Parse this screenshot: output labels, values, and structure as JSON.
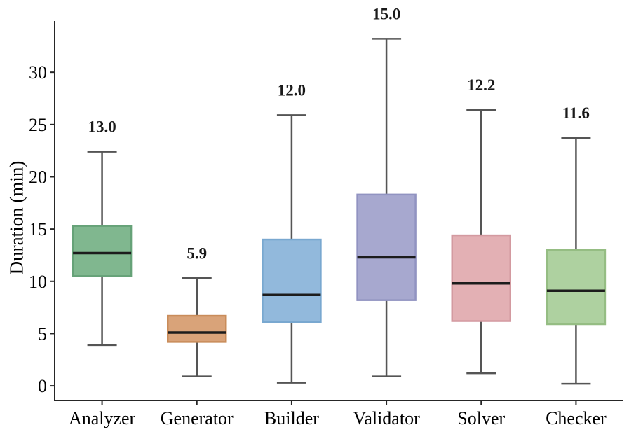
{
  "chart_data": {
    "type": "boxplot",
    "title": "",
    "xlabel": "",
    "ylabel": "Duration (min)",
    "categories": [
      "Analyzer",
      "Generator",
      "Builder",
      "Validator",
      "Solver",
      "Checker"
    ],
    "yticks": [
      0,
      5,
      10,
      15,
      20,
      25,
      30
    ],
    "ylim": [
      -1.4,
      34.9
    ],
    "grid": false,
    "legend": "none",
    "series": [
      {
        "category": "Analyzer",
        "whisker_low": 3.9,
        "q1": 10.5,
        "median": 12.7,
        "q3": 15.3,
        "whisker_high": 22.4,
        "mean_label": "13.0",
        "fill": "#80b78f",
        "edge": "#66a278"
      },
      {
        "category": "Generator",
        "whisker_low": 0.9,
        "q1": 4.2,
        "median": 5.1,
        "q3": 6.7,
        "whisker_high": 10.3,
        "mean_label": "5.9",
        "fill": "#d9a379",
        "edge": "#c98c5a"
      },
      {
        "category": "Builder",
        "whisker_low": 0.3,
        "q1": 6.1,
        "median": 8.7,
        "q3": 14.0,
        "whisker_high": 25.9,
        "mean_label": "12.0",
        "fill": "#92b9dc",
        "edge": "#79a8d0"
      },
      {
        "category": "Validator",
        "whisker_low": 0.9,
        "q1": 8.2,
        "median": 12.3,
        "q3": 18.3,
        "whisker_high": 33.2,
        "mean_label": "15.0",
        "fill": "#a7a8cf",
        "edge": "#9193c1"
      },
      {
        "category": "Solver",
        "whisker_low": 1.2,
        "q1": 6.2,
        "median": 9.8,
        "q3": 14.4,
        "whisker_high": 26.4,
        "mean_label": "12.2",
        "fill": "#e3b0b4",
        "edge": "#d39aa0"
      },
      {
        "category": "Checker",
        "whisker_low": 0.2,
        "q1": 5.9,
        "median": 9.1,
        "q3": 13.0,
        "whisker_high": 23.7,
        "mean_label": "11.6",
        "fill": "#aed1a0",
        "edge": "#95bd83"
      }
    ],
    "colors": {
      "whisker": "#555555",
      "median": "#1c1c1c",
      "axis": "#262626"
    }
  }
}
